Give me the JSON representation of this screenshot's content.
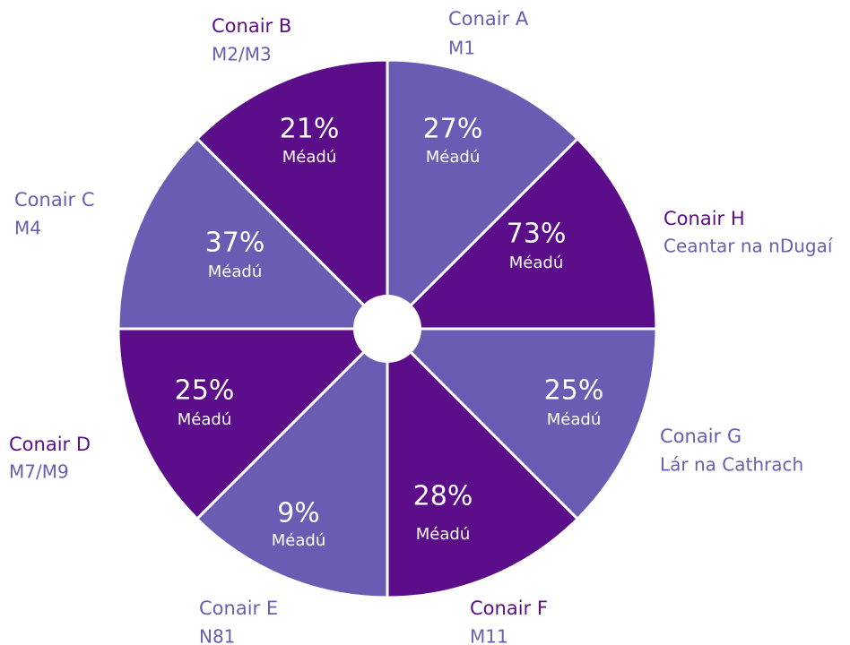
{
  "segments": [
    {
      "name": "Conair A",
      "subtitle": "M1",
      "value": "27%",
      "note": "Méadú",
      "color": "#6a5cb3"
    },
    {
      "name": "Conair B",
      "subtitle": "M2/M3",
      "value": "21%",
      "note": "Méadú",
      "color": "#5c0d8a"
    },
    {
      "name": "Conair C",
      "subtitle": "M4",
      "value": "37%",
      "note": "Méadú",
      "color": "#6a5cb3"
    },
    {
      "name": "Conair D",
      "subtitle": "M7/M9",
      "value": "25%",
      "note": "Méadú",
      "color": "#5c0d8a"
    },
    {
      "name": "Conair E",
      "subtitle": "N81",
      "value": "9%",
      "note": "Méadú",
      "color": "#6a5cb3"
    },
    {
      "name": "Conair F",
      "subtitle": "M11",
      "value": "28%",
      "note": "Méadú",
      "color": "#5c0d8a"
    },
    {
      "name": "Conair G",
      "subtitle": "Lár na Cathrach",
      "value": "25%",
      "note": "Méadú",
      "color": "#6a5cb3"
    },
    {
      "name": "Conair H",
      "subtitle": "Ceantar na nDugaí",
      "value": "73%",
      "note": "Méadú",
      "color": "#5c0d8a"
    }
  ]
}
